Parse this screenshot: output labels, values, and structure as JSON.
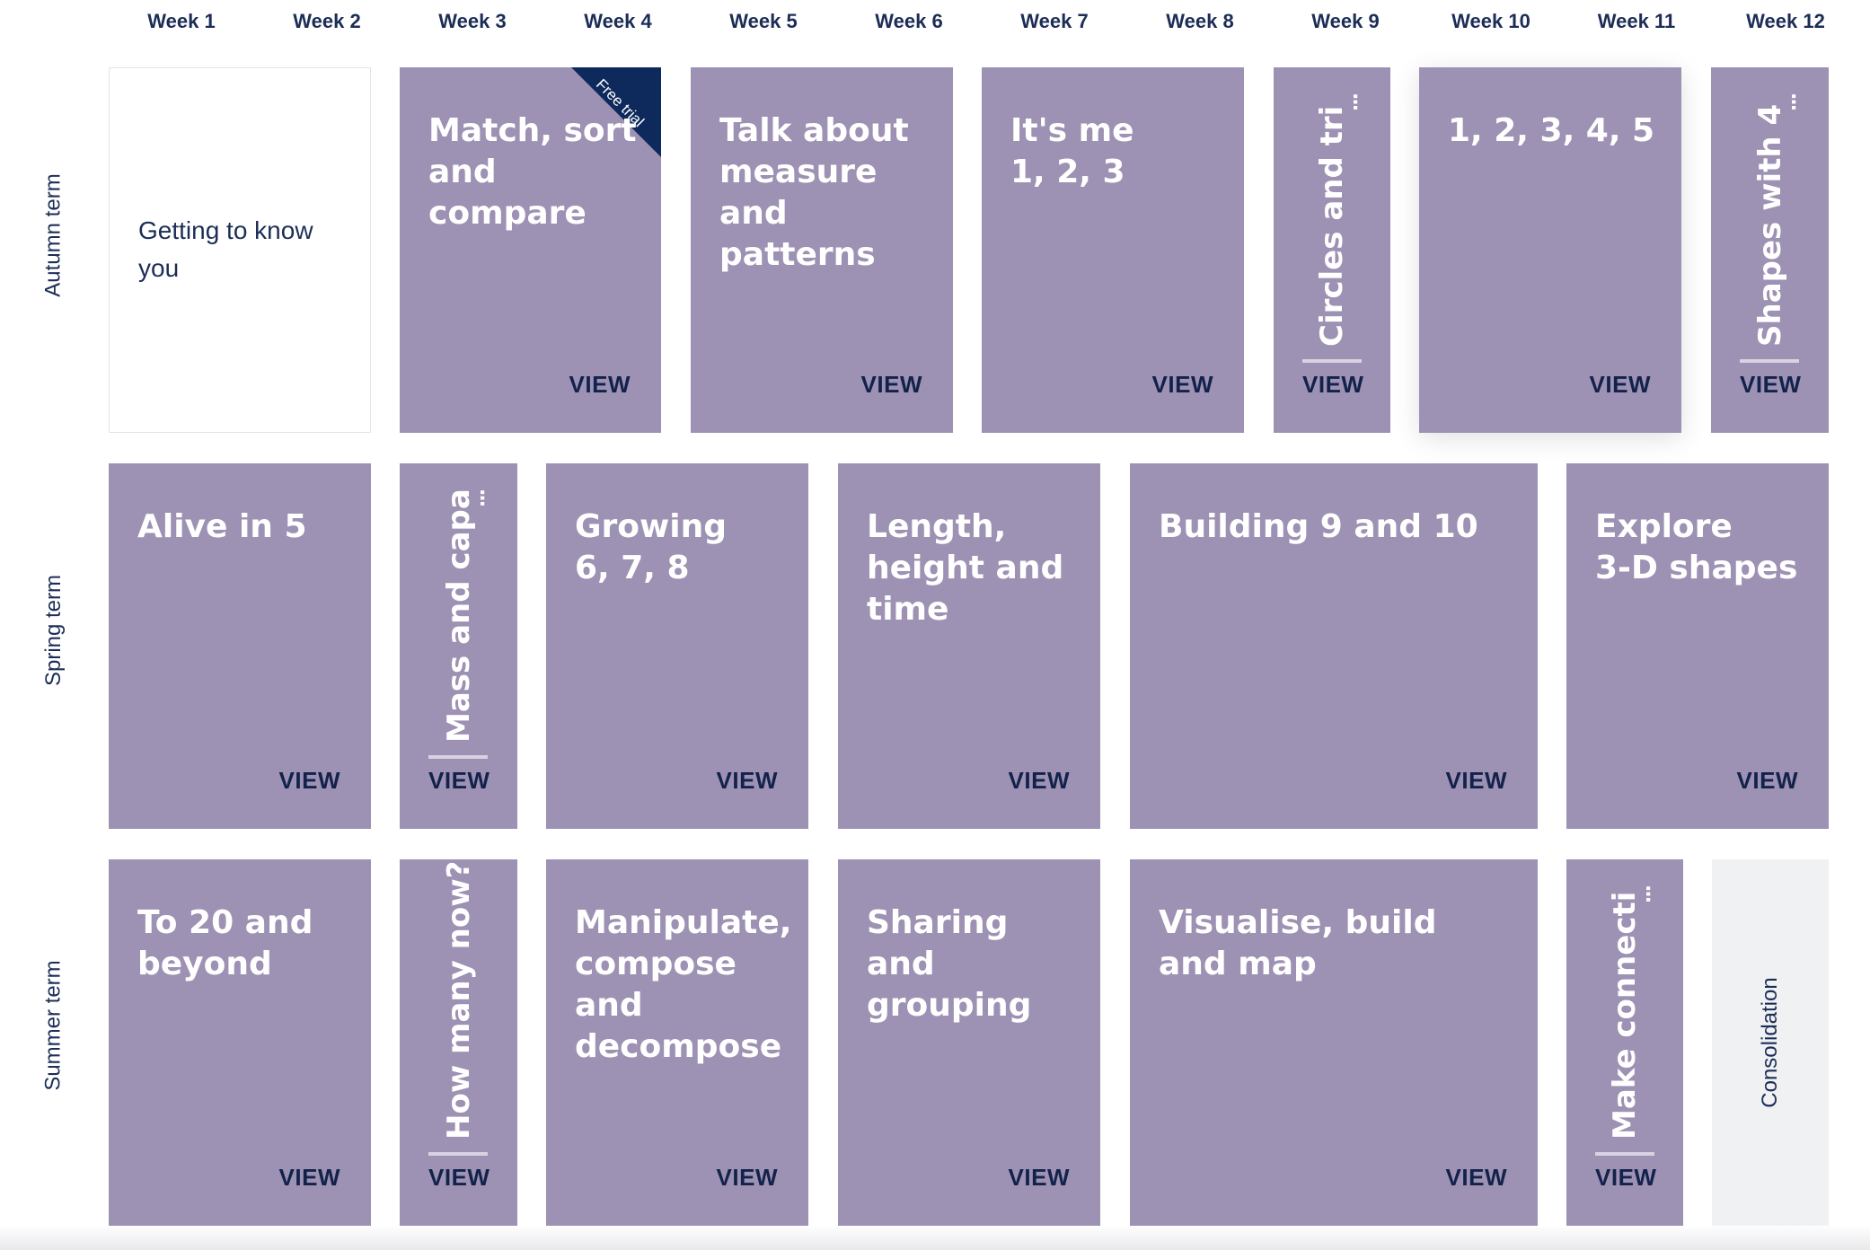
{
  "weeks": [
    "Week 1",
    "Week 2",
    "Week 3",
    "Week 4",
    "Week 5",
    "Week 6",
    "Week 7",
    "Week 8",
    "Week 9",
    "Week 10",
    "Week 11",
    "Week 12"
  ],
  "terms": [
    "Autumn term",
    "Spring term",
    "Summer term"
  ],
  "view_label": "VIEW",
  "free_trial_label": "Free trial",
  "ellipsis": "...",
  "colors": {
    "card": "#9d91b4",
    "navy": "#1c2d56",
    "ribbon": "#0e2a5c"
  },
  "autumn": {
    "intro": "Getting to know\nyou",
    "match": "Match, sort\nand compare",
    "measure": "Talk about\nmeasure\nand patterns",
    "itsme": "It's me\n1, 2, 3",
    "circles": "Circles and tri",
    "onetofive": "1, 2, 3, 4, 5",
    "shapes4": "Shapes with 4"
  },
  "spring": {
    "alive": "Alive in 5",
    "mass": "Mass and capa",
    "growing": "Growing\n6, 7, 8",
    "length": "Length,\nheight and\ntime",
    "building": "Building 9 and 10",
    "explore": "Explore\n3-D shapes"
  },
  "summer": {
    "to20": "To 20 and\nbeyond",
    "howmany": "How many now?",
    "manipulate": "Manipulate,\ncompose and\ndecompose",
    "sharing": "Sharing and\ngrouping",
    "visualise": "Visualise, build\nand map",
    "connect": "Make connecti",
    "consolidation": "Consolidation"
  }
}
